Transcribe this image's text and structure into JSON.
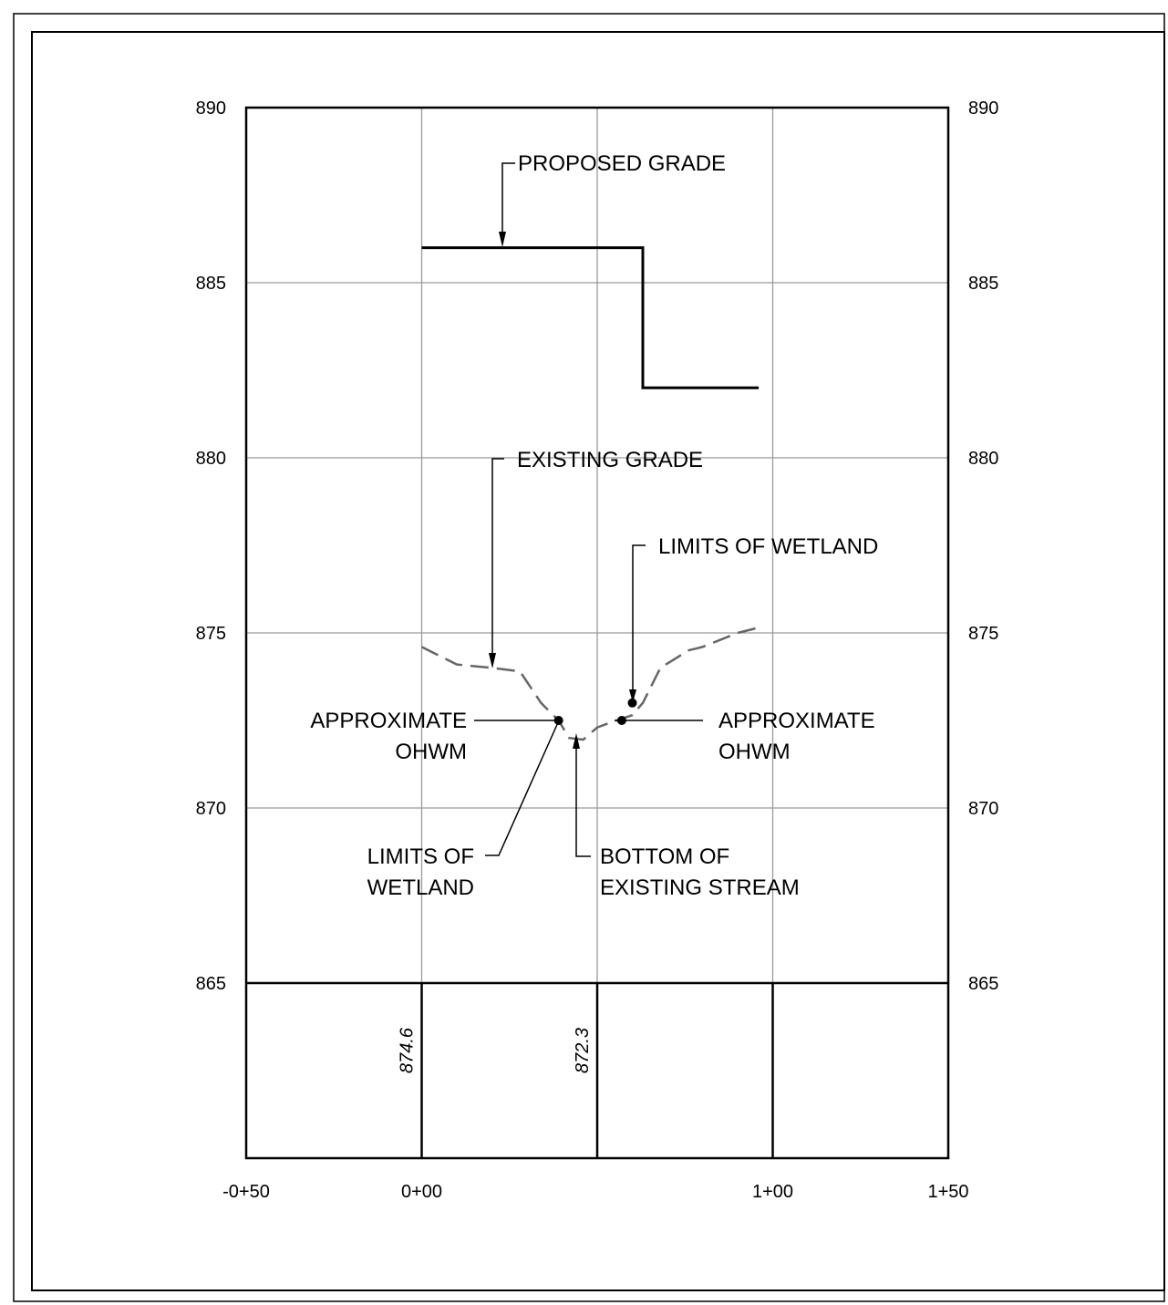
{
  "chart_data": {
    "type": "profile",
    "y_ticks": [
      890,
      885,
      880,
      875,
      870,
      865
    ],
    "x_ticks": [
      {
        "value": -50,
        "label": "-0+50"
      },
      {
        "value": 0,
        "label": "0+00"
      },
      {
        "value": 100,
        "label": "1+00"
      },
      {
        "value": 150,
        "label": "1+50"
      }
    ],
    "ylim": [
      865,
      890
    ],
    "xlim": [
      -50,
      150
    ],
    "station_elevations": [
      {
        "station": 0,
        "label": "874.6"
      },
      {
        "station": 50,
        "label": "872.3"
      }
    ],
    "proposed_grade": {
      "x": [
        0,
        63,
        63,
        96
      ],
      "y": [
        886.0,
        886.0,
        882.0,
        882.0
      ]
    },
    "existing_grade": {
      "x": [
        0,
        10,
        20,
        28,
        34,
        39,
        42,
        46,
        50,
        54,
        57,
        60,
        63,
        68,
        72,
        76,
        80,
        85,
        90,
        96
      ],
      "y": [
        874.6,
        874.1,
        874.0,
        873.9,
        873.0,
        872.5,
        872.0,
        871.95,
        872.3,
        872.45,
        872.55,
        872.65,
        873.0,
        874.0,
        874.25,
        874.5,
        874.6,
        874.8,
        875.0,
        875.15
      ]
    },
    "points": [
      {
        "name": "approximate-ohwm-left",
        "x": 39,
        "y": 872.5
      },
      {
        "name": "approximate-ohwm-right",
        "x": 57,
        "y": 872.5
      },
      {
        "name": "limits-of-wetland-right",
        "x": 60,
        "y": 873.0
      }
    ]
  },
  "annotations": {
    "proposed_grade": "PROPOSED GRADE",
    "existing_grade": "EXISTING GRADE",
    "limits_of_wetland_right": "LIMITS OF WETLAND",
    "ohwm_left_line1": "APPROXIMATE",
    "ohwm_left_line2": "OHWM",
    "ohwm_right_line1": "APPROXIMATE",
    "ohwm_right_line2": "OHWM",
    "limits_of_wetland_left_line1": "LIMITS OF",
    "limits_of_wetland_left_line2": "WETLAND",
    "bottom_stream_line1": "BOTTOM OF",
    "bottom_stream_line2": "EXISTING STREAM"
  },
  "colors": {
    "frame": "#000000",
    "grid": "#9a9a9a",
    "existing_grade": "#666666"
  }
}
